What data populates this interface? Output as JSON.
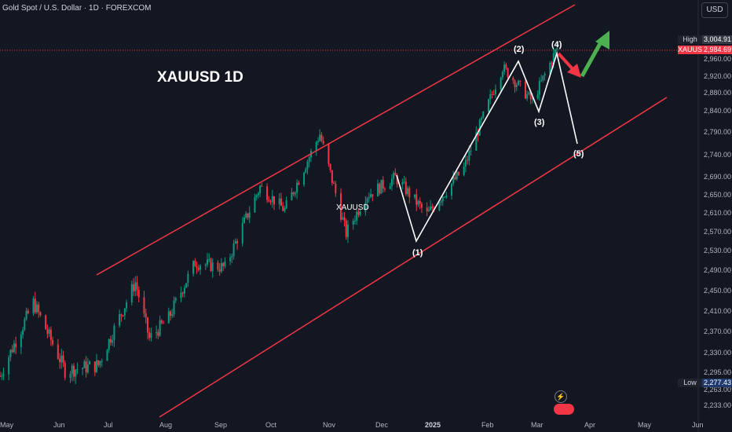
{
  "header": {
    "title": "Gold Spot / U.S. Dollar · 1D · FOREXCOM",
    "currency_button": "USD"
  },
  "annotations": {
    "main_label": "XAUUSD 1D",
    "symbol_label": "XAUUSD",
    "waves": {
      "w1": "(1)",
      "w2": "(2)",
      "w3": "(3)",
      "w4": "(4)",
      "w5": "(5)"
    }
  },
  "price_axis": {
    "high_label": "High",
    "high_value": "3,004.91",
    "current_label": "XAUUSD",
    "current_value": "2,984.69",
    "low_label": "Low",
    "low_value": "2,277.43",
    "ticks": [
      "2,960.00",
      "2,920.00",
      "2,880.00",
      "2,840.00",
      "2,790.00",
      "2,740.00",
      "2,690.00",
      "2,650.00",
      "2,610.00",
      "2,570.00",
      "2,530.00",
      "2,490.00",
      "2,450.00",
      "2,410.00",
      "2,370.00",
      "2,330.00",
      "2,295.00",
      "2,263.00",
      "2,233.00"
    ]
  },
  "time_axis": {
    "ticks": [
      "May",
      "Jun",
      "Jul",
      "Aug",
      "Sep",
      "Oct",
      "Nov",
      "Dec",
      "2025",
      "Feb",
      "Mar",
      "Apr",
      "May",
      "Jun"
    ]
  },
  "colors": {
    "up": "#089981",
    "down": "#f23645",
    "channel": "#f23645",
    "background": "#131722",
    "arrow_up": "#4caf50",
    "arrow_down": "#f23645"
  },
  "chart_data": {
    "type": "candlestick",
    "title": "XAUUSD 1D",
    "symbol": "Gold Spot / U.S. Dollar",
    "interval": "1D",
    "ylim": [
      2220,
      3020
    ],
    "x_range": [
      "May 2024",
      "Jun 2025"
    ],
    "high": 3004.91,
    "low": 2277.43,
    "last": 2984.69,
    "wave_points": [
      {
        "label": "(1)",
        "date": "2024-12-30",
        "price": 2560
      },
      {
        "label": "(2)",
        "date": "2025-02-20",
        "price": 2955
      },
      {
        "label": "(3)",
        "date": "2025-02-28",
        "price": 2835
      },
      {
        "label": "(4)",
        "date": "2025-03-14",
        "price": 3000
      },
      {
        "label": "(5)",
        "date": "2025-03-31",
        "price": 2765
      }
    ],
    "close_path": [
      {
        "date": "2024-05-01",
        "price": 2290
      },
      {
        "date": "2024-05-20",
        "price": 2430
      },
      {
        "date": "2024-06-07",
        "price": 2300
      },
      {
        "date": "2024-06-26",
        "price": 2310
      },
      {
        "date": "2024-07-17",
        "price": 2470
      },
      {
        "date": "2024-07-25",
        "price": 2360
      },
      {
        "date": "2024-08-05",
        "price": 2400
      },
      {
        "date": "2024-08-20",
        "price": 2510
      },
      {
        "date": "2024-09-06",
        "price": 2500
      },
      {
        "date": "2024-09-26",
        "price": 2670
      },
      {
        "date": "2024-10-10",
        "price": 2620
      },
      {
        "date": "2024-10-30",
        "price": 2785
      },
      {
        "date": "2024-11-14",
        "price": 2570
      },
      {
        "date": "2024-11-25",
        "price": 2650
      },
      {
        "date": "2024-12-12",
        "price": 2690
      },
      {
        "date": "2024-12-30",
        "price": 2610
      },
      {
        "date": "2025-01-20",
        "price": 2710
      },
      {
        "date": "2025-02-11",
        "price": 2940
      },
      {
        "date": "2025-02-28",
        "price": 2860
      },
      {
        "date": "2025-03-14",
        "price": 2984.69
      }
    ]
  }
}
